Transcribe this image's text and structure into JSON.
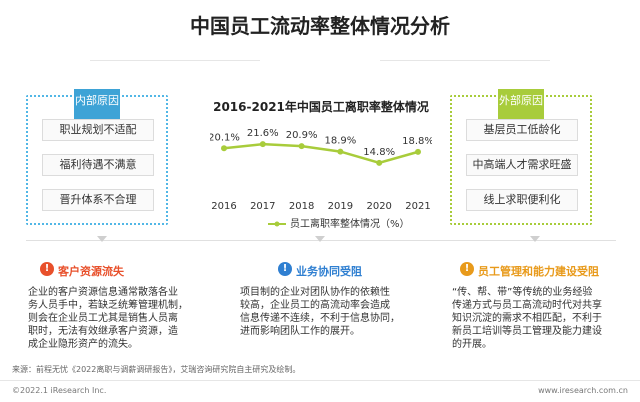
{
  "page": {
    "title": "中国员工流动率整体情况分析"
  },
  "internal": {
    "tab": "内部原因",
    "items": [
      "职业规划不适配",
      "福利待遇不满意",
      "晋升体系不合理"
    ]
  },
  "external": {
    "tab": "外部原因",
    "items": [
      "基层员工低龄化",
      "中高端人才需求旺盛",
      "线上求职便利化"
    ]
  },
  "chart_data": {
    "type": "line",
    "title": "2016-2021年中国员工离职率整体情况",
    "categories": [
      "2016",
      "2017",
      "2018",
      "2019",
      "2020",
      "2021"
    ],
    "series": [
      {
        "name": "员工离职率整体情况（%）",
        "values": [
          20.1,
          21.6,
          20.9,
          18.9,
          14.8,
          18.8
        ],
        "labels": [
          "20.1%",
          "21.6%",
          "20.9%",
          "18.9%",
          "14.8%",
          "18.8%"
        ]
      }
    ],
    "ylim": [
      10,
      24
    ],
    "legend": "bottom",
    "grid": false,
    "color": "#a8cc3b"
  },
  "sections": [
    {
      "title": "客户资源流失",
      "color": "#e8502b",
      "icon": "!",
      "body": [
        "企业的客户资源信息通常散落各业",
        "务人员手中，若缺乏统筹管理机制，",
        "则会在企业员工尤其是销售人员离",
        "职时，无法有效继承客户资源，造",
        "成企业隐形资产的流失。"
      ]
    },
    {
      "title": "业务协同受阻",
      "color": "#2f7fd1",
      "icon": "!",
      "body": [
        "项目制的企业对团队协作的依赖性",
        "较高，企业员工的高流动率会造成",
        "信息传递不连续，不利于信息协同，",
        "进而影响团队工作的展开。"
      ]
    },
    {
      "title": "员工管理和能力建设受阻",
      "color": "#e89a1b",
      "icon": "!",
      "body": [
        "“传、帮、带”等传统的业务经验",
        "传递方式与员工高流动时代对共享",
        "知识沉淀的需求不相匹配，不利于",
        "新员工培训等员工管理及能力建设",
        "的开展。"
      ]
    }
  ],
  "source": "来源：前程无忧《2022离职与调薪调研报告》，艾瑞咨询研究院自主研究及绘制。",
  "footer": {
    "left": "©2022.1 iResearch Inc.",
    "right": "www.iresearch.com.cn"
  }
}
